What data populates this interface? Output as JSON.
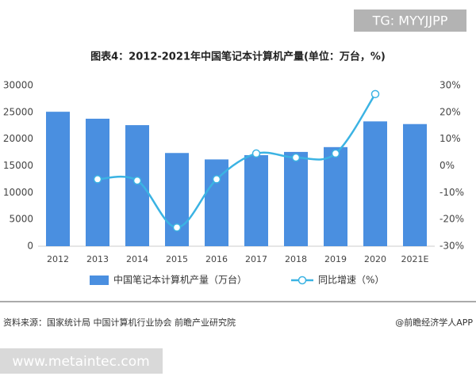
{
  "chart_data": {
    "type": "bar-line",
    "title": "图表4：2012-2021年中国笔记本计算机产量(单位：万台，%)",
    "categories": [
      "2012",
      "2013",
      "2014",
      "2015",
      "2016",
      "2017",
      "2018",
      "2019",
      "2020",
      "2021E"
    ],
    "series": [
      {
        "name": "中国笔记本计算机产量（万台）",
        "type": "bar",
        "color": "#4a8fe0",
        "values": [
          25100,
          23800,
          22600,
          17400,
          16200,
          17000,
          17600,
          18500,
          23300,
          22800
        ]
      },
      {
        "name": "同比增速（%）",
        "type": "line",
        "axis": "y2",
        "color": "#3bb3e3",
        "values": [
          null,
          -5,
          -5.5,
          -23,
          -5,
          4.6,
          3.1,
          4.6,
          26.8,
          null
        ]
      }
    ],
    "ylim": [
      0,
      30000
    ],
    "yticks": [
      0,
      5000,
      10000,
      15000,
      20000,
      25000,
      30000
    ],
    "y2lim": [
      -30,
      30
    ],
    "y2ticks": [
      {
        "value": -30,
        "label": "-30%"
      },
      {
        "value": -20,
        "label": "-20%"
      },
      {
        "value": -10,
        "label": "-10%"
      },
      {
        "value": 0,
        "label": "0%"
      },
      {
        "value": 10,
        "label": "10%"
      },
      {
        "value": 20,
        "label": "20%"
      },
      {
        "value": 30,
        "label": "30%"
      }
    ],
    "grid": false,
    "legend": "bottom",
    "source": "资料来源：国家统计局 中国计算机行业协会 前瞻产业研究院",
    "credit": "@前瞻经济学人APP"
  },
  "overlay": {
    "badge": "TG: MYYJJPP",
    "url": "www.metaintec.com"
  }
}
